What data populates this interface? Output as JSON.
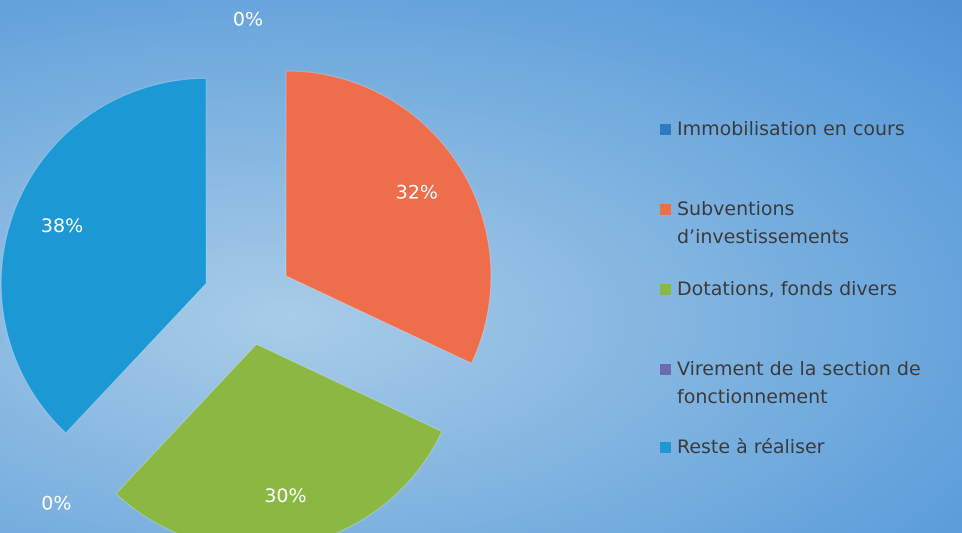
{
  "chart_data": {
    "type": "pie",
    "categories": [
      "Immobilisation en cours",
      "Subventions d’investissements",
      "Dotations, fonds divers",
      "Virement de la section de fonctionnement",
      "Reste à réaliser"
    ],
    "values": [
      0,
      32,
      30,
      0,
      38
    ],
    "value_labels": [
      "0%",
      "32%",
      "30%",
      "0%",
      "38%"
    ],
    "colors": [
      "#2b7cc4",
      "#ee6e4c",
      "#8bb843",
      "#6a6cae",
      "#1c98d4"
    ]
  }
}
